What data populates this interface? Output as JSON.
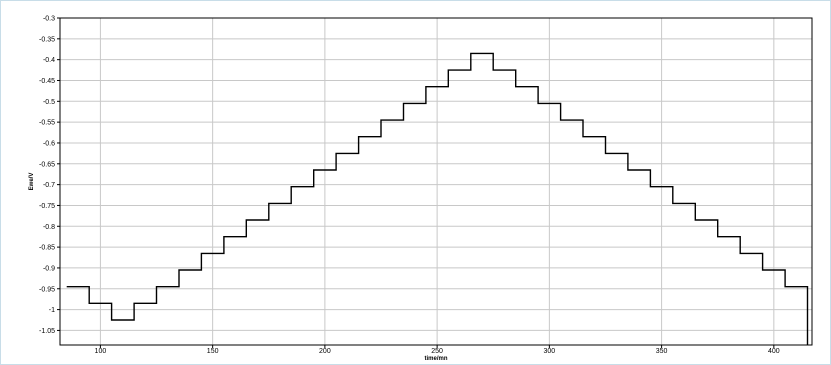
{
  "colors": {
    "plot_border": "#000000",
    "grid": "#c8c8c8",
    "trace": "#000000",
    "frame": "#c8dde8"
  },
  "chart_data": {
    "type": "line",
    "step": true,
    "xlabel": "time/mn",
    "ylabel": "Ewe/V",
    "xlim": [
      82,
      417
    ],
    "ylim": [
      -1.085,
      -0.3
    ],
    "grid": true,
    "x_ticks": [
      100,
      150,
      200,
      250,
      300,
      350,
      400
    ],
    "x_tick_labels": [
      "100",
      "150",
      "200",
      "250",
      "300",
      "350",
      "400"
    ],
    "y_ticks": [
      -0.3,
      -0.35,
      -0.4,
      -0.45,
      -0.5,
      -0.55,
      -0.6,
      -0.65,
      -0.7,
      -0.75,
      -0.8,
      -0.85,
      -0.9,
      -0.95,
      -1,
      -1.05
    ],
    "y_tick_labels": [
      "-0.3",
      "-0.35",
      "-0.4",
      "-0.45",
      "-0.5",
      "-0.55",
      "-0.6",
      "-0.65",
      "-0.7",
      "-0.75",
      "-0.8",
      "-0.85",
      "-0.9",
      "-0.95",
      "-1",
      "-1.05"
    ],
    "series": [
      {
        "x": [
          85,
          95,
          95,
          105,
          105,
          115,
          115,
          125,
          125,
          135,
          135,
          145,
          145,
          155,
          155,
          165,
          165,
          175,
          175,
          185,
          185,
          195,
          195,
          205,
          205,
          215,
          215,
          225,
          225,
          235,
          235,
          245,
          245,
          255,
          255,
          265,
          265,
          275,
          275,
          285,
          285,
          295,
          295,
          305,
          305,
          315,
          315,
          325,
          325,
          335,
          335,
          345,
          345,
          355,
          355,
          365,
          365,
          375,
          375,
          385,
          385,
          395,
          395,
          405,
          405,
          415,
          415
        ],
        "y": [
          -0.945,
          -0.945,
          -0.985,
          -0.985,
          -1.025,
          -1.025,
          -0.985,
          -0.985,
          -0.945,
          -0.945,
          -0.905,
          -0.905,
          -0.865,
          -0.865,
          -0.825,
          -0.825,
          -0.785,
          -0.785,
          -0.745,
          -0.745,
          -0.705,
          -0.705,
          -0.665,
          -0.665,
          -0.625,
          -0.625,
          -0.585,
          -0.585,
          -0.545,
          -0.545,
          -0.505,
          -0.505,
          -0.465,
          -0.465,
          -0.425,
          -0.425,
          -0.385,
          -0.385,
          -0.425,
          -0.425,
          -0.465,
          -0.465,
          -0.505,
          -0.505,
          -0.545,
          -0.545,
          -0.585,
          -0.585,
          -0.625,
          -0.625,
          -0.665,
          -0.665,
          -0.705,
          -0.705,
          -0.745,
          -0.745,
          -0.785,
          -0.785,
          -0.825,
          -0.825,
          -0.865,
          -0.865,
          -0.905,
          -0.905,
          -0.945,
          -0.945,
          -1.085
        ]
      }
    ]
  }
}
